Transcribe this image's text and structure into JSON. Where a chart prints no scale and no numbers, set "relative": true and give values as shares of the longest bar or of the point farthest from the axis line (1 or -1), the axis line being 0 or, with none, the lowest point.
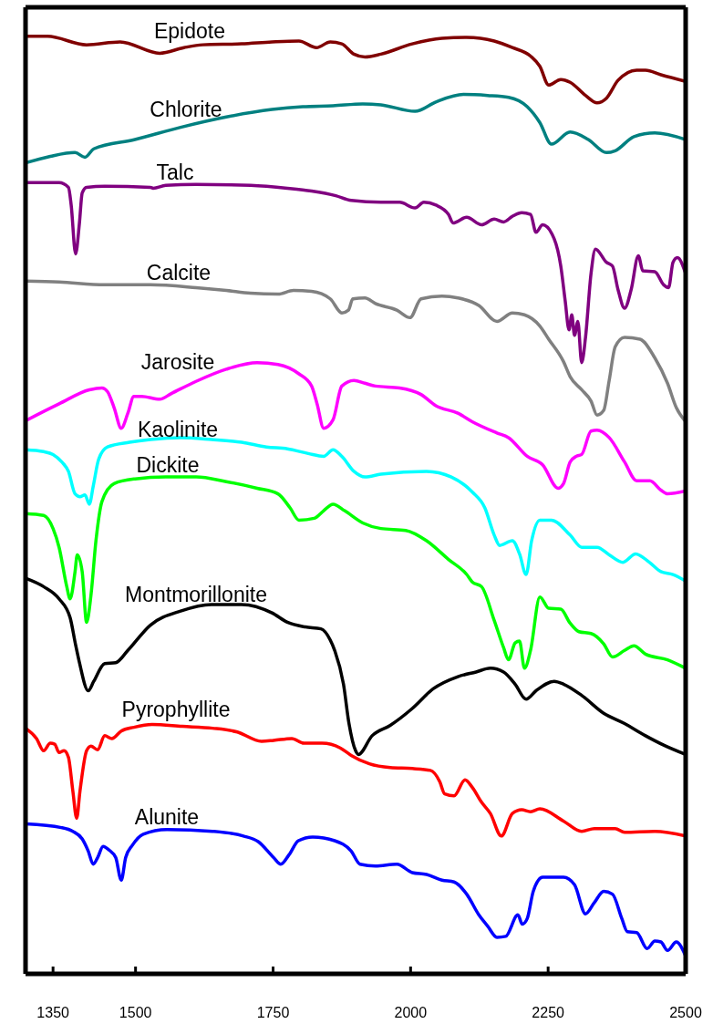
{
  "chart_data": {
    "type": "line",
    "relative": true,
    "xlim": [
      1300,
      2500
    ],
    "xticks": [
      1350,
      1500,
      1750,
      2000,
      2250,
      2500
    ],
    "series": [
      {
        "name": "Epidote",
        "color": "#800000",
        "x": [
          1300,
          1340,
          1411,
          1472,
          1544,
          1588,
          1622,
          1693,
          1748,
          1797,
          1829,
          1854,
          1875,
          1897,
          1917,
          1946,
          2003,
          2057,
          2102,
          2152,
          2185,
          2218,
          2235,
          2251,
          2273,
          2290,
          2318,
          2339,
          2356,
          2377,
          2411,
          2427,
          2455,
          2500
        ],
        "values": [
          1,
          1,
          0.991,
          0.994,
          0.982,
          0.988,
          0.991,
          0.992,
          0.994,
          0.995,
          0.988,
          0.994,
          0.992,
          0.981,
          0.978,
          0.981,
          0.992,
          0.998,
          0.999,
          0.995,
          0.988,
          0.979,
          0.968,
          0.948,
          0.954,
          0.951,
          0.937,
          0.929,
          0.934,
          0.953,
          0.964,
          0.964,
          0.959,
          0.952
        ]
      },
      {
        "name": "Chlorite",
        "color": "#008080",
        "x": [
          1300,
          1345,
          1390,
          1408,
          1424,
          1499,
          1582,
          1665,
          1748,
          1804,
          1859,
          1913,
          1946,
          2008,
          2046,
          2096,
          2140,
          2178,
          2212,
          2235,
          2256,
          2290,
          2323,
          2356,
          2372,
          2406,
          2444,
          2500
        ],
        "values": [
          0.865,
          0.872,
          0.876,
          0.871,
          0.88,
          0.89,
          0.903,
          0.914,
          0.922,
          0.925,
          0.926,
          0.928,
          0.927,
          0.92,
          0.93,
          0.938,
          0.937,
          0.935,
          0.925,
          0.908,
          0.885,
          0.898,
          0.89,
          0.876,
          0.878,
          0.893,
          0.897,
          0.89
        ]
      },
      {
        "name": "Talc",
        "color": "#800080",
        "x": [
          1300,
          1361,
          1378,
          1383,
          1391,
          1398,
          1403,
          1411,
          1444,
          1527,
          1532,
          1555,
          1610,
          1709,
          1776,
          1820,
          1864,
          1892,
          1946,
          1980,
          2008,
          2024,
          2046,
          2069,
          2077,
          2102,
          2129,
          2152,
          2169,
          2185,
          2202,
          2218,
          2228,
          2240,
          2261,
          2273,
          2281,
          2288,
          2293,
          2298,
          2304,
          2311,
          2318,
          2328,
          2336,
          2356,
          2367,
          2377,
          2389,
          2401,
          2414,
          2422,
          2444,
          2460,
          2469,
          2477,
          2485,
          2500
        ],
        "values": [
          0.844,
          0.844,
          0.839,
          0.82,
          0.768,
          0.801,
          0.833,
          0.839,
          0.84,
          0.839,
          0.838,
          0.841,
          0.842,
          0.841,
          0.838,
          0.835,
          0.83,
          0.825,
          0.823,
          0.823,
          0.817,
          0.823,
          0.82,
          0.81,
          0.801,
          0.807,
          0.799,
          0.805,
          0.802,
          0.808,
          0.812,
          0.81,
          0.791,
          0.799,
          0.784,
          0.755,
          0.718,
          0.687,
          0.703,
          0.681,
          0.696,
          0.652,
          0.679,
          0.747,
          0.773,
          0.759,
          0.755,
          0.73,
          0.71,
          0.73,
          0.766,
          0.75,
          0.749,
          0.735,
          0.732,
          0.759,
          0.764,
          0.747
        ]
      },
      {
        "name": "Calcite",
        "color": "#808080",
        "x": [
          1300,
          1361,
          1444,
          1527,
          1610,
          1665,
          1709,
          1759,
          1787,
          1820,
          1854,
          1875,
          1887,
          1895,
          1917,
          1936,
          1975,
          1999,
          2019,
          2057,
          2086,
          2124,
          2157,
          2185,
          2207,
          2235,
          2251,
          2278,
          2290,
          2311,
          2328,
          2339,
          2351,
          2361,
          2372,
          2389,
          2417,
          2444,
          2467,
          2483,
          2500
        ],
        "values": [
          0.739,
          0.738,
          0.735,
          0.735,
          0.732,
          0.729,
          0.726,
          0.725,
          0.729,
          0.728,
          0.72,
          0.705,
          0.708,
          0.72,
          0.721,
          0.715,
          0.708,
          0.7,
          0.72,
          0.723,
          0.721,
          0.713,
          0.696,
          0.705,
          0.703,
          0.691,
          0.677,
          0.653,
          0.637,
          0.623,
          0.611,
          0.596,
          0.601,
          0.633,
          0.669,
          0.679,
          0.677,
          0.657,
          0.63,
          0.604,
          0.589
        ]
      },
      {
        "name": "Jarosite",
        "color": "#ff00ff",
        "x": [
          1300,
          1361,
          1416,
          1439,
          1449,
          1461,
          1474,
          1486,
          1497,
          1511,
          1544,
          1565,
          1610,
          1665,
          1721,
          1759,
          1797,
          1820,
          1830,
          1842,
          1859,
          1875,
          1897,
          1917,
          1936,
          1980,
          2019,
          2046,
          2086,
          2112,
          2157,
          2178,
          2212,
          2240,
          2268,
          2278,
          2290,
          2301,
          2311,
          2328,
          2339,
          2361,
          2389,
          2411,
          2435,
          2455,
          2467,
          2500
        ],
        "values": [
          0.59,
          0.608,
          0.623,
          0.625,
          0.621,
          0.604,
          0.582,
          0.598,
          0.616,
          0.616,
          0.613,
          0.619,
          0.632,
          0.645,
          0.652,
          0.65,
          0.64,
          0.627,
          0.608,
          0.582,
          0.591,
          0.627,
          0.633,
          0.63,
          0.627,
          0.625,
          0.618,
          0.606,
          0.598,
          0.589,
          0.577,
          0.572,
          0.552,
          0.543,
          0.518,
          0.523,
          0.546,
          0.552,
          0.554,
          0.579,
          0.58,
          0.572,
          0.546,
          0.526,
          0.526,
          0.516,
          0.512,
          0.515
        ]
      },
      {
        "name": "Kaolinite",
        "color": "#00ffff",
        "x": [
          1300,
          1333,
          1350,
          1366,
          1378,
          1390,
          1399,
          1408,
          1416,
          1423,
          1433,
          1449,
          1489,
          1527,
          1582,
          1638,
          1693,
          1738,
          1776,
          1814,
          1842,
          1859,
          1875,
          1897,
          1917,
          1946,
          2029,
          2074,
          2112,
          2135,
          2152,
          2162,
          2185,
          2198,
          2210,
          2220,
          2235,
          2256,
          2290,
          2311,
          2339,
          2361,
          2386,
          2409,
          2434,
          2455,
          2477,
          2500
        ],
        "values": [
          0.559,
          0.557,
          0.554,
          0.546,
          0.536,
          0.512,
          0.509,
          0.511,
          0.501,
          0.52,
          0.549,
          0.562,
          0.567,
          0.57,
          0.572,
          0.57,
          0.567,
          0.562,
          0.56,
          0.555,
          0.552,
          0.559,
          0.552,
          0.536,
          0.53,
          0.533,
          0.536,
          0.53,
          0.514,
          0.497,
          0.468,
          0.457,
          0.462,
          0.448,
          0.426,
          0.462,
          0.484,
          0.484,
          0.468,
          0.455,
          0.455,
          0.447,
          0.439,
          0.448,
          0.439,
          0.429,
          0.426,
          0.419
        ]
      },
      {
        "name": "Dickite",
        "color": "#00ff00",
        "x": [
          1300,
          1333,
          1350,
          1361,
          1375,
          1381,
          1390,
          1394,
          1403,
          1411,
          1419,
          1428,
          1439,
          1461,
          1499,
          1555,
          1610,
          1665,
          1721,
          1759,
          1781,
          1797,
          1825,
          1842,
          1859,
          1880,
          1913,
          1946,
          1991,
          2029,
          2069,
          2102,
          2112,
          2129,
          2152,
          2169,
          2178,
          2190,
          2198,
          2207,
          2218,
          2235,
          2251,
          2273,
          2290,
          2306,
          2328,
          2351,
          2367,
          2389,
          2406,
          2427,
          2467,
          2500
        ],
        "values": [
          0.491,
          0.489,
          0.475,
          0.455,
          0.413,
          0.4,
          0.429,
          0.447,
          0.429,
          0.375,
          0.404,
          0.462,
          0.504,
          0.523,
          0.528,
          0.53,
          0.53,
          0.525,
          0.518,
          0.512,
          0.497,
          0.484,
          0.486,
          0.494,
          0.501,
          0.494,
          0.481,
          0.475,
          0.473,
          0.462,
          0.442,
          0.426,
          0.418,
          0.413,
          0.377,
          0.348,
          0.335,
          0.353,
          0.355,
          0.326,
          0.345,
          0.402,
          0.39,
          0.389,
          0.374,
          0.365,
          0.363,
          0.352,
          0.338,
          0.345,
          0.35,
          0.341,
          0.335,
          0.326
        ]
      },
      {
        "name": "Montmorillonite",
        "color": "#000000",
        "x": [
          1300,
          1333,
          1361,
          1381,
          1391,
          1398,
          1414,
          1424,
          1444,
          1464,
          1486,
          1527,
          1582,
          1638,
          1693,
          1748,
          1776,
          1809,
          1837,
          1854,
          1862,
          1878,
          1888,
          1900,
          1905,
          1930,
          1963,
          2003,
          2041,
          2086,
          2119,
          2145,
          2169,
          2190,
          2210,
          2228,
          2261,
          2278,
          2311,
          2351,
          2389,
          2427,
          2460,
          2500
        ],
        "values": [
          0.422,
          0.413,
          0.4,
          0.38,
          0.351,
          0.332,
          0.302,
          0.312,
          0.331,
          0.332,
          0.345,
          0.372,
          0.387,
          0.394,
          0.394,
          0.385,
          0.375,
          0.37,
          0.368,
          0.356,
          0.345,
          0.309,
          0.267,
          0.238,
          0.234,
          0.254,
          0.265,
          0.283,
          0.304,
          0.317,
          0.322,
          0.326,
          0.322,
          0.309,
          0.293,
          0.302,
          0.312,
          0.309,
          0.297,
          0.278,
          0.267,
          0.254,
          0.244,
          0.234
        ]
      },
      {
        "name": "Pyrophyllite",
        "color": "#ff0000",
        "x": [
          1300,
          1320,
          1333,
          1345,
          1353,
          1361,
          1370,
          1378,
          1386,
          1393,
          1399,
          1411,
          1419,
          1431,
          1444,
          1457,
          1474,
          1497,
          1530,
          1585,
          1640,
          1685,
          1729,
          1751,
          1784,
          1806,
          1839,
          1872,
          1892,
          1925,
          1963,
          2003,
          2036,
          2053,
          2062,
          2079,
          2099,
          2112,
          2129,
          2145,
          2165,
          2185,
          2202,
          2218,
          2235,
          2278,
          2311,
          2334,
          2372,
          2389,
          2444,
          2500
        ],
        "values": [
          0.262,
          0.251,
          0.238,
          0.246,
          0.245,
          0.236,
          0.238,
          0.231,
          0.195,
          0.166,
          0.195,
          0.238,
          0.243,
          0.239,
          0.254,
          0.251,
          0.259,
          0.263,
          0.266,
          0.264,
          0.262,
          0.258,
          0.248,
          0.249,
          0.251,
          0.246,
          0.246,
          0.241,
          0.233,
          0.224,
          0.22,
          0.219,
          0.217,
          0.205,
          0.192,
          0.19,
          0.207,
          0.199,
          0.183,
          0.171,
          0.147,
          0.171,
          0.175,
          0.173,
          0.176,
          0.163,
          0.152,
          0.155,
          0.155,
          0.151,
          0.152,
          0.147
        ]
      },
      {
        "name": "Alunite",
        "color": "#0000ff",
        "x": [
          1300,
          1365,
          1386,
          1403,
          1414,
          1423,
          1431,
          1441,
          1452,
          1464,
          1474,
          1482,
          1494,
          1514,
          1557,
          1640,
          1696,
          1723,
          1751,
          1764,
          1779,
          1796,
          1822,
          1862,
          1892,
          1908,
          1936,
          1975,
          2003,
          2029,
          2057,
          2079,
          2102,
          2124,
          2140,
          2157,
          2173,
          2195,
          2203,
          2212,
          2223,
          2240,
          2278,
          2298,
          2318,
          2334,
          2351,
          2367,
          2384,
          2394,
          2411,
          2430,
          2444,
          2455,
          2467,
          2483,
          2500
        ],
        "values": [
          0.16,
          0.156,
          0.152,
          0.144,
          0.131,
          0.117,
          0.124,
          0.136,
          0.132,
          0.124,
          0.1,
          0.124,
          0.137,
          0.149,
          0.154,
          0.152,
          0.147,
          0.141,
          0.124,
          0.117,
          0.127,
          0.142,
          0.146,
          0.142,
          0.131,
          0.117,
          0.115,
          0.117,
          0.108,
          0.106,
          0.1,
          0.098,
          0.085,
          0.063,
          0.051,
          0.039,
          0.04,
          0.063,
          0.053,
          0.059,
          0.088,
          0.103,
          0.103,
          0.095,
          0.064,
          0.076,
          0.088,
          0.085,
          0.059,
          0.045,
          0.044,
          0.027,
          0.035,
          0.034,
          0.025,
          0.034,
          0.019
        ]
      }
    ]
  }
}
